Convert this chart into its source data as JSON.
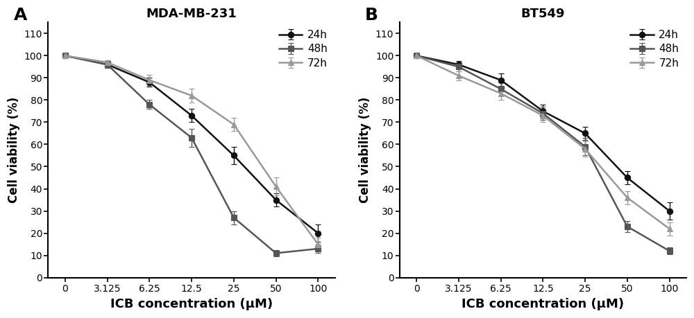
{
  "x_labels": [
    "0",
    "3.125",
    "6.25",
    "12.5",
    "25",
    "50",
    "100"
  ],
  "x_positions": [
    0,
    1,
    2,
    3,
    4,
    5,
    6
  ],
  "panel_A": {
    "title": "MDA-MB-231",
    "label": "A",
    "series": {
      "24h": {
        "y": [
          100,
          96,
          88,
          73,
          55,
          35,
          20
        ],
        "yerr": [
          0.8,
          1.5,
          2,
          3,
          4,
          3,
          4
        ],
        "color": "#111111",
        "marker": "o",
        "linewidth": 1.8,
        "markerfacecolor": "#111111"
      },
      "48h": {
        "y": [
          100,
          96,
          78,
          63,
          27,
          11,
          13
        ],
        "yerr": [
          0.8,
          1.5,
          2,
          4,
          3,
          1.5,
          2
        ],
        "color": "#555555",
        "marker": "s",
        "linewidth": 1.8,
        "markerfacecolor": "#555555"
      },
      "72h": {
        "y": [
          100,
          97,
          89,
          82,
          69,
          41,
          15
        ],
        "yerr": [
          0.8,
          1,
          2.5,
          3,
          3,
          4,
          3
        ],
        "color": "#999999",
        "marker": "^",
        "linewidth": 1.8,
        "markerfacecolor": "#999999"
      }
    }
  },
  "panel_B": {
    "title": "BT549",
    "label": "B",
    "series": {
      "24h": {
        "y": [
          100,
          96,
          89,
          75,
          65,
          45,
          30
        ],
        "yerr": [
          0.8,
          1.5,
          3,
          3,
          3,
          3,
          4
        ],
        "color": "#111111",
        "marker": "o",
        "linewidth": 1.8,
        "markerfacecolor": "#111111"
      },
      "48h": {
        "y": [
          100,
          95,
          85,
          74,
          59,
          23,
          12
        ],
        "yerr": [
          0.8,
          2,
          3,
          3,
          4,
          2.5,
          1.5
        ],
        "color": "#555555",
        "marker": "s",
        "linewidth": 1.8,
        "markerfacecolor": "#555555"
      },
      "72h": {
        "y": [
          100,
          91,
          83,
          73,
          58,
          36,
          22
        ],
        "yerr": [
          0.8,
          2,
          3,
          3,
          3.5,
          3,
          3
        ],
        "color": "#999999",
        "marker": "^",
        "linewidth": 1.8,
        "markerfacecolor": "#999999"
      }
    }
  },
  "xlabel": "ICB concentration (μM)",
  "ylabel": "Cell viability (%)",
  "ylim": [
    0,
    115
  ],
  "yticks": [
    0,
    10,
    20,
    30,
    40,
    50,
    60,
    70,
    80,
    90,
    100,
    110
  ],
  "ytick_labels": [
    "0",
    "10",
    "20",
    "30",
    "40",
    "50",
    "60",
    "70",
    "80",
    "90",
    "100",
    "110"
  ],
  "legend_order": [
    "24h",
    "48h",
    "72h"
  ],
  "background_color": "#ffffff",
  "title_fontsize": 13,
  "ylabel_fontsize": 12,
  "tick_fontsize": 10,
  "legend_fontsize": 11,
  "xlabel_fontsize": 13,
  "capsize": 3,
  "markersize": 6,
  "panel_label_fontsize": 18
}
